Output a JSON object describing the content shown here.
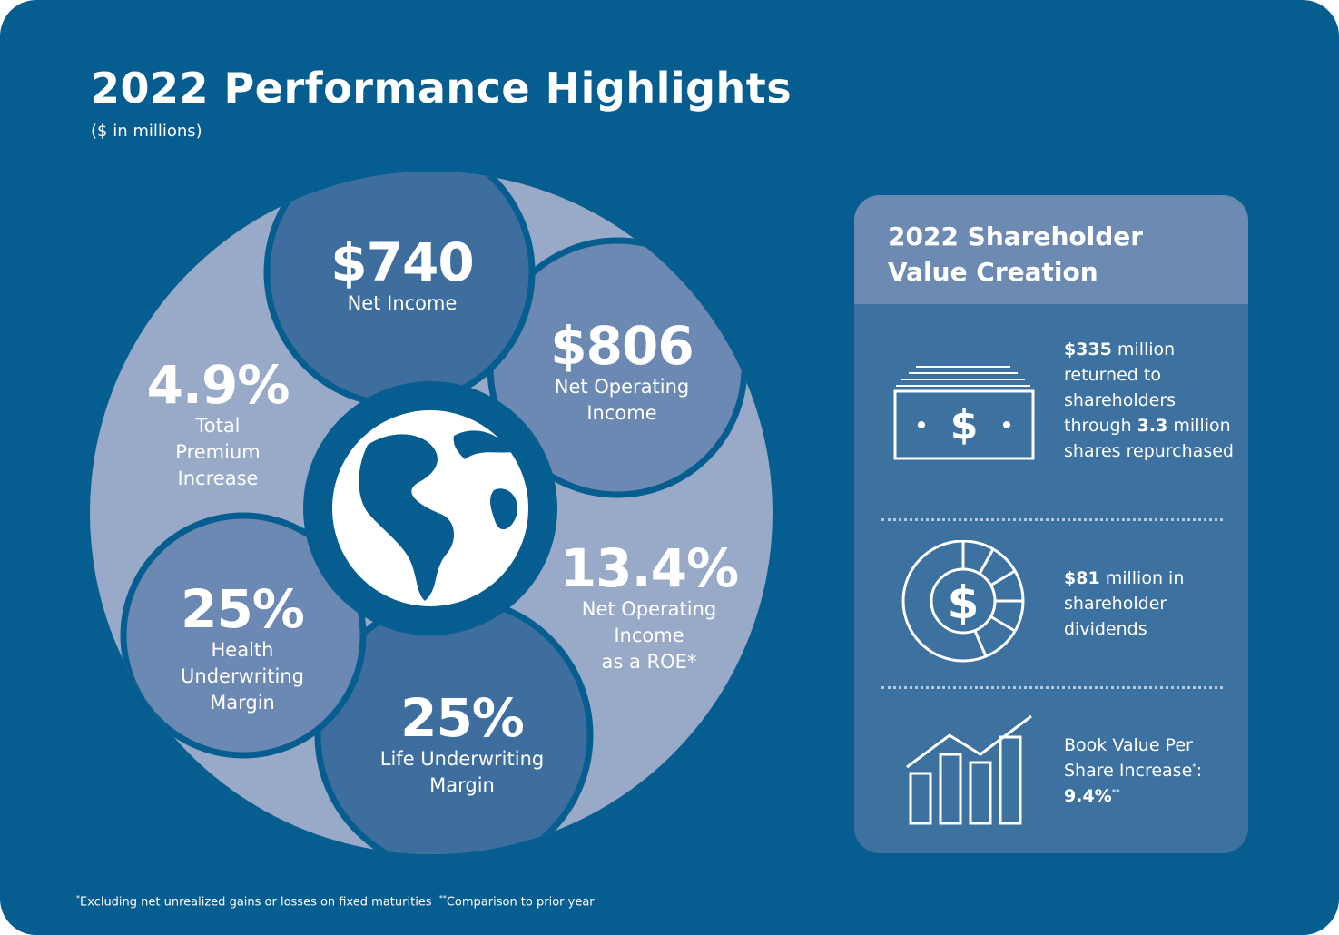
{
  "header": {
    "title": "2022 Performance Highlights",
    "subtitle": "($ in millions)"
  },
  "metrics": {
    "net_income": {
      "value": "$740",
      "label": "Net Income"
    },
    "net_operating_income": {
      "value": "$806",
      "label": "Net Operating\nIncome"
    },
    "roe": {
      "value": "13.4%",
      "label": "Net Operating\nIncome\nas a ROE*"
    },
    "life_margin": {
      "value": "25%",
      "label": "Life Underwriting\nMargin"
    },
    "health_margin": {
      "value": "25%",
      "label": "Health\nUnderwriting\nMargin"
    },
    "premium_increase": {
      "value": "4.9%",
      "label": "Total\nPremium\nIncrease"
    }
  },
  "shareholder": {
    "title": "2022 Shareholder\nValue Creation",
    "item1": {
      "amount": "$335",
      "t1": " million returned to shareholders through ",
      "shares": "3.3",
      "t2": " million shares repurchased"
    },
    "item2": {
      "amount": "$81",
      "t1": " million in shareholder dividends"
    },
    "item3": {
      "t1": "Book Value Per Share Increase",
      "mark1": "*",
      "t2": ": ",
      "value": "9.4%",
      "mark2": "**"
    }
  },
  "footnote": {
    "mark1": "*",
    "text1": "Excluding net unrealized gains or losses on fixed maturities",
    "mark2": "**",
    "text2": "Comparison to prior year"
  },
  "colors": {
    "background": "#065d90",
    "dark_segment": "#3e6e9d",
    "mid_segment": "#6b89b3",
    "light_segment": "#98aac8",
    "panel_body": "#3c71a0",
    "panel_header": "#6d8ab2"
  },
  "icons": [
    "globe-icon",
    "money-bill-icon",
    "dividend-donut-icon",
    "bar-chart-growth-icon"
  ]
}
